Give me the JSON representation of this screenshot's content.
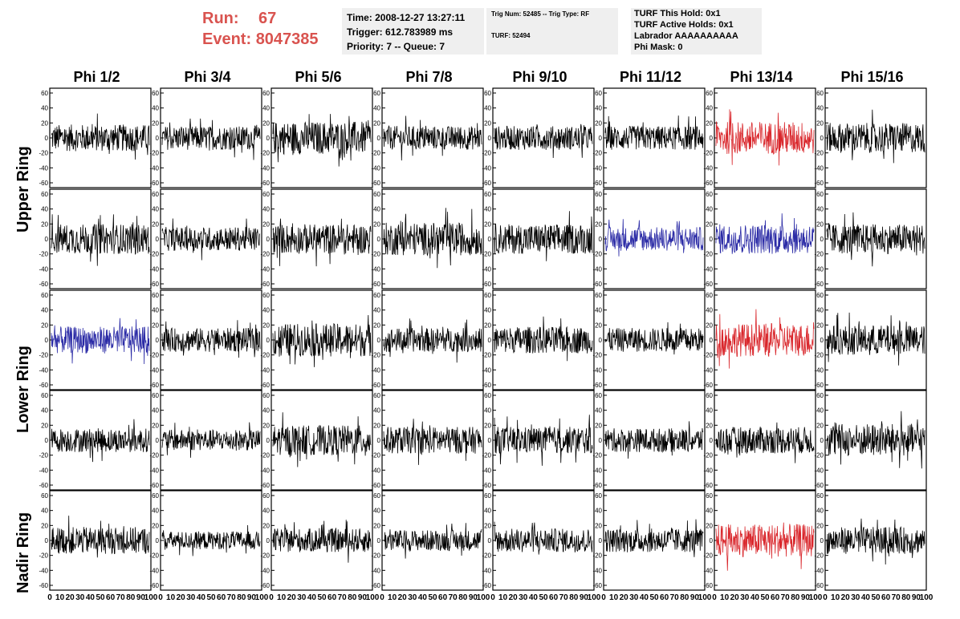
{
  "run": {
    "run_label": "Run:",
    "run_value": "67",
    "event_label": "Event:",
    "event_value": "8047385"
  },
  "time_box": {
    "time": "Time: 2008-12-27 13:27:11",
    "trigger": "Trigger: 612.783989 ms",
    "priority": "Priority: 7 -- Queue: 7"
  },
  "trig_box": {
    "line1": "Trig Num: 52485 -- Trig Type: RF",
    "line2": "TURF: 52494"
  },
  "turf_box": {
    "hold": "TURF This Hold: 0x1",
    "active": "TURF Active Holds: 0x1",
    "labrador": "Labrador AAAAAAAAAA",
    "phi_mask": "Phi Mask: 0"
  },
  "columns": [
    "Phi 1/2",
    "Phi 3/4",
    "Phi 5/6",
    "Phi 7/8",
    "Phi 9/10",
    "Phi 11/12",
    "Phi 13/14",
    "Phi 15/16"
  ],
  "rings": {
    "upper": "Upper Ring",
    "lower": "Lower Ring",
    "nadir": "Nadir Ring"
  },
  "colors": {
    "normal": "#000000",
    "red": "#d9262b",
    "blue": "#2b2ba6",
    "title_red": "#d9534f",
    "box_bg": "#efefef"
  },
  "y_ticks": [
    "60",
    "40",
    "20",
    "0",
    "-20",
    "-40",
    "-60"
  ],
  "x_ticks": [
    "0",
    "10",
    "20",
    "30",
    "40",
    "50",
    "60",
    "70",
    "80",
    "90",
    "100"
  ],
  "chart_data": {
    "type": "line",
    "description_rows": 5,
    "description_cols": 8,
    "ylim": [
      -60,
      60
    ],
    "xlim": [
      0,
      100
    ],
    "row_heights_amplitude": [
      [
        18,
        16,
        22,
        16,
        16,
        16,
        22,
        20
      ],
      [
        20,
        16,
        20,
        22,
        20,
        16,
        20,
        20
      ],
      [
        18,
        16,
        22,
        16,
        18,
        16,
        22,
        20
      ],
      [
        16,
        14,
        20,
        18,
        18,
        16,
        18,
        22
      ],
      [
        18,
        12,
        16,
        14,
        16,
        16,
        22,
        18
      ]
    ],
    "trace_colors": [
      [
        "normal",
        "normal",
        "normal",
        "normal",
        "normal",
        "normal",
        "red",
        "normal"
      ],
      [
        "normal",
        "normal",
        "normal",
        "normal",
        "normal",
        "blue",
        "blue",
        "normal"
      ],
      [
        "blue",
        "normal",
        "normal",
        "normal",
        "normal",
        "normal",
        "red",
        "normal"
      ],
      [
        "normal",
        "normal",
        "normal",
        "normal",
        "normal",
        "normal",
        "normal",
        "normal"
      ],
      [
        "normal",
        "normal",
        "normal",
        "normal",
        "normal",
        "normal",
        "red",
        "normal"
      ]
    ]
  }
}
